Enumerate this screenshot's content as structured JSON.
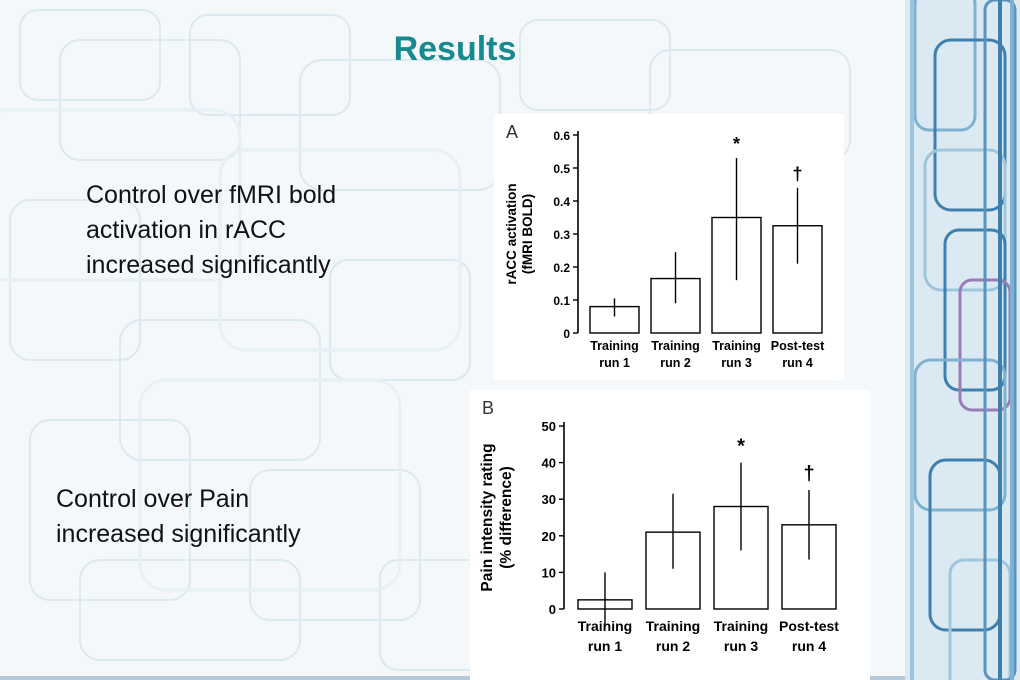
{
  "slide": {
    "title": "Results",
    "caption_rACC_lines": [
      "Control over fMRI bold",
      "activation in rACC",
      "increased significantly"
    ],
    "caption_pain_lines": [
      "Control over Pain",
      "increased significantly"
    ]
  },
  "colors": {
    "title": "#168a8e",
    "background": "#f4f8fb",
    "decor_stripes": [
      "#7fb2d0",
      "#3f7fae",
      "#9a7db5",
      "#cfe3ee"
    ]
  },
  "chart_data": [
    {
      "type": "bar",
      "panel_label": "A",
      "categories": [
        [
          "Training",
          "run 1"
        ],
        [
          "Training",
          "run 2"
        ],
        [
          "Training",
          "run 3"
        ],
        [
          "Post-test",
          "run 4"
        ]
      ],
      "values": [
        0.08,
        0.165,
        0.35,
        0.325
      ],
      "error_low": [
        0.05,
        0.09,
        0.16,
        0.21
      ],
      "error_high": [
        0.105,
        0.245,
        0.53,
        0.44
      ],
      "markers": [
        "",
        "",
        "*",
        "†"
      ],
      "ylabel": [
        "rACC activation",
        "(fMRI BOLD)"
      ],
      "yticks": [
        "0",
        "0.1",
        "0.2",
        "0.3",
        "0.4",
        "0.5",
        "0.6"
      ],
      "ylim": [
        0,
        0.6
      ],
      "grid": false
    },
    {
      "type": "bar",
      "panel_label": "B",
      "categories": [
        [
          "Training",
          "run 1"
        ],
        [
          "Training",
          "run 2"
        ],
        [
          "Training",
          "run 3"
        ],
        [
          "Post-test",
          "run 4"
        ]
      ],
      "values": [
        2.5,
        21,
        28,
        23
      ],
      "error_low": [
        -5,
        11,
        16,
        13.5
      ],
      "error_high": [
        10,
        31.5,
        40,
        32.5
      ],
      "markers": [
        "",
        "",
        "*",
        "†"
      ],
      "ylabel": [
        "Pain intensity rating",
        "(% difference)"
      ],
      "yticks": [
        "0",
        "10",
        "20",
        "30",
        "40",
        "50"
      ],
      "ylim": [
        0,
        50
      ],
      "grid": false
    }
  ]
}
